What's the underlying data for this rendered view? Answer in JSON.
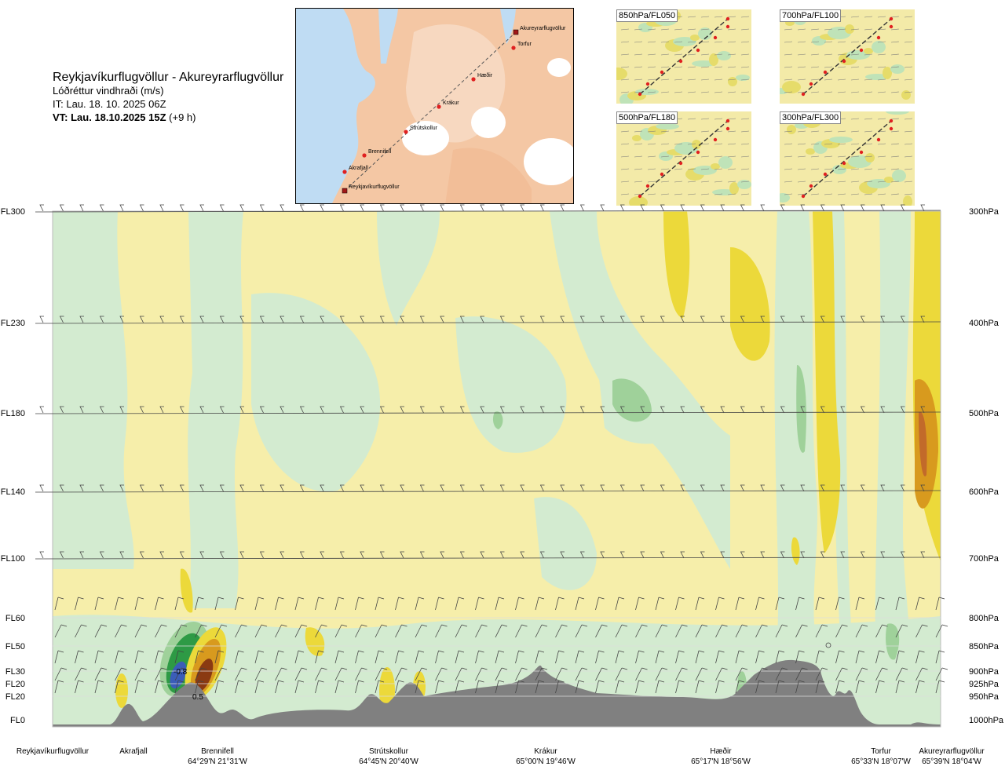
{
  "header": {
    "route": "Reykjavíkurflugvöllur - Akureyrarflugvöllur",
    "variable": "Lóðréttur vindhraði (m/s)",
    "it": "IT: Lau. 18. 10. 2025 06Z",
    "vt_bold": "VT: Lau. 18.10.2025 15Z",
    "vt_offset": "(+9 h)"
  },
  "map": {
    "points": [
      {
        "name": "Akureyrarflugvöllur",
        "type": "airport"
      },
      {
        "name": "Torfur",
        "type": "waypoint"
      },
      {
        "name": "Hæðir",
        "type": "waypoint"
      },
      {
        "name": "Krákur",
        "type": "waypoint"
      },
      {
        "name": "Strútskollur",
        "type": "waypoint"
      },
      {
        "name": "Brennifell",
        "type": "waypoint"
      },
      {
        "name": "Akrafjall",
        "type": "waypoint"
      },
      {
        "name": "Reykjavíkurflugvöllur",
        "type": "airport"
      }
    ]
  },
  "thumbnails": [
    {
      "label": "850hPa/FL050"
    },
    {
      "label": "700hPa/FL100"
    },
    {
      "label": "500hPa/FL180"
    },
    {
      "label": "300hPa/FL300"
    }
  ],
  "chart_data": {
    "type": "heatmap",
    "title": "",
    "levels": [
      {
        "fl": "FL300",
        "hpa": "300hPa"
      },
      {
        "fl": "FL230",
        "hpa": "400hPa"
      },
      {
        "fl": "FL180",
        "hpa": "500hPa"
      },
      {
        "fl": "FL140",
        "hpa": "600hPa"
      },
      {
        "fl": "FL100",
        "hpa": "700hPa"
      },
      {
        "fl": "FL60",
        "hpa": "800hPa"
      },
      {
        "fl": "FL50",
        "hpa": "850hPa"
      },
      {
        "fl": "FL30",
        "hpa": "900hPa"
      },
      {
        "fl": "FL20",
        "hpa": "925hPa"
      },
      {
        "fl": "FL20",
        "hpa": "950hPa"
      },
      {
        "fl": "FL0",
        "hpa": "1000hPa"
      }
    ],
    "locations": [
      {
        "name": "Reykjavíkurflugvöllur",
        "coord": ""
      },
      {
        "name": "Akrafjall",
        "coord": ""
      },
      {
        "name": "Brennifell",
        "coord": "64°29'N 21°31'W"
      },
      {
        "name": "Strútskollur",
        "coord": "64°45'N 20°40'W"
      },
      {
        "name": "Krákur",
        "coord": "65°00'N 19°46'W"
      },
      {
        "name": "Hæðir",
        "coord": "65°17'N 18°56'W"
      },
      {
        "name": "Torfur",
        "coord": "65°33'N 18°07'W"
      },
      {
        "name": "Akureyrarflugvöllur",
        "coord": "65°39'N 18°04'W"
      }
    ],
    "annotations": [
      "-0.8",
      "0.5"
    ],
    "colors": {
      "neg_light": "#d3ebd0",
      "neg_mid": "#9fd19a",
      "neg_strong": "#2e9a45",
      "neg_core": "#3b5db8",
      "pos_light": "#f6eeaa",
      "pos_mid": "#ecd93a",
      "pos_strong": "#d89a1e",
      "pos_core": "#8a3a12",
      "terrain": "#808080"
    }
  }
}
